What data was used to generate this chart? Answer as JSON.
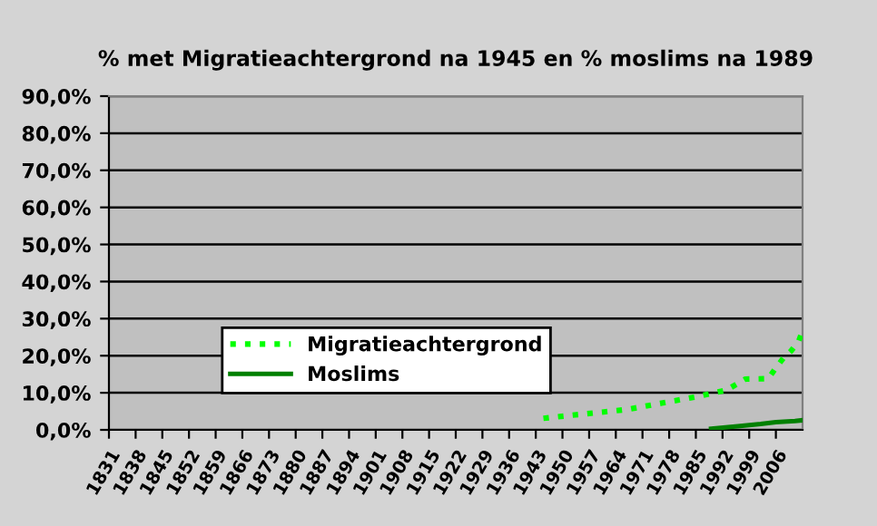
{
  "chart_data": {
    "type": "line",
    "title": "% met Migratieachtergrond na 1945 en % moslims na 1989",
    "series": [
      {
        "name": "Migratieachtergrond",
        "color": "#00ff00",
        "line_style": "dotted",
        "x": [
          1945,
          1952,
          1967,
          1976,
          1985,
          1993,
          1998,
          2004,
          2006,
          2008,
          2010,
          2012,
          2013
        ],
        "values": [
          3.1,
          3.9,
          5.5,
          7.2,
          8.9,
          10.7,
          13.7,
          13.8,
          16.7,
          19.4,
          21.3,
          24.0,
          26.7
        ]
      },
      {
        "name": "Moslims",
        "color": "#008000",
        "line_style": "solid",
        "x": [
          1989,
          1996,
          2002,
          2006,
          2011,
          2013
        ],
        "values": [
          0.3,
          1.0,
          1.6,
          2.1,
          2.4,
          2.6
        ]
      }
    ],
    "xlim": [
      1831,
      2013
    ],
    "xticks": [
      1831,
      1838,
      1845,
      1852,
      1859,
      1866,
      1873,
      1880,
      1887,
      1894,
      1901,
      1908,
      1915,
      1922,
      1929,
      1936,
      1943,
      1950,
      1957,
      1964,
      1971,
      1978,
      1985,
      1992,
      1999,
      2006
    ],
    "ylim": [
      0,
      90
    ],
    "yticks": [
      {
        "value": 0,
        "label": "0,0%"
      },
      {
        "value": 10,
        "label": "10,0%"
      },
      {
        "value": 20,
        "label": "20,0%"
      },
      {
        "value": 30,
        "label": "30,0%"
      },
      {
        "value": 40,
        "label": "40,0%"
      },
      {
        "value": 50,
        "label": "50,0%"
      },
      {
        "value": 60,
        "label": "60,0%"
      },
      {
        "value": 70,
        "label": "70,0%"
      },
      {
        "value": 80,
        "label": "80,0%"
      },
      {
        "value": 90,
        "label": "90,0%"
      }
    ],
    "grid": "y",
    "legend": "bottom",
    "marker": "none"
  }
}
